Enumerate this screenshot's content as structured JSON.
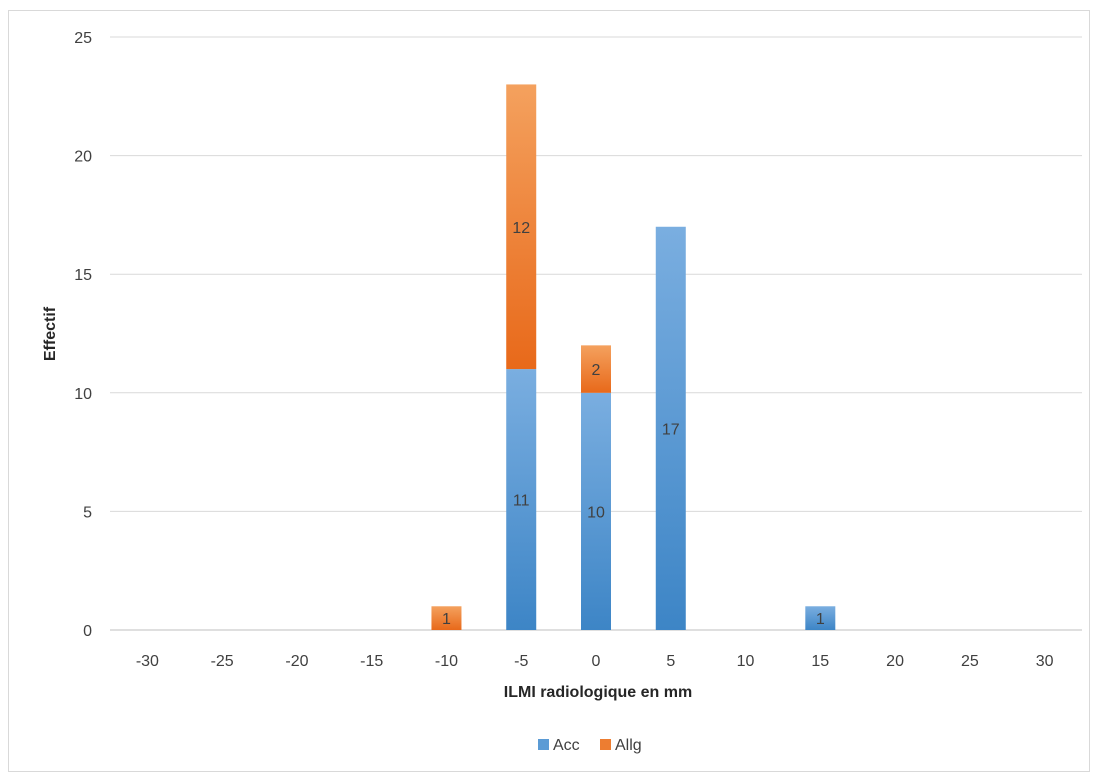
{
  "chart_data": {
    "type": "bar",
    "stacked": true,
    "title": "",
    "xlabel": "ILMI radiologique en mm",
    "ylabel": "Effectif",
    "categories": [
      "-30",
      "-25",
      "-20",
      "-15",
      "-10",
      "-5",
      "0",
      "5",
      "10",
      "15",
      "20",
      "25",
      "30"
    ],
    "series": [
      {
        "name": "Acc",
        "color": "#5b9bd5",
        "values": [
          0,
          0,
          0,
          0,
          0,
          11,
          10,
          17,
          0,
          1,
          0,
          0,
          0
        ]
      },
      {
        "name": "Allg",
        "color": "#ed7d31",
        "values": [
          0,
          0,
          0,
          0,
          1,
          12,
          2,
          0,
          0,
          0,
          0,
          0,
          0
        ]
      }
    ],
    "ylim": [
      0,
      25
    ],
    "yticks": [
      "0",
      "5",
      "10",
      "15",
      "20",
      "25"
    ],
    "grid": true,
    "legend": "bottom"
  }
}
